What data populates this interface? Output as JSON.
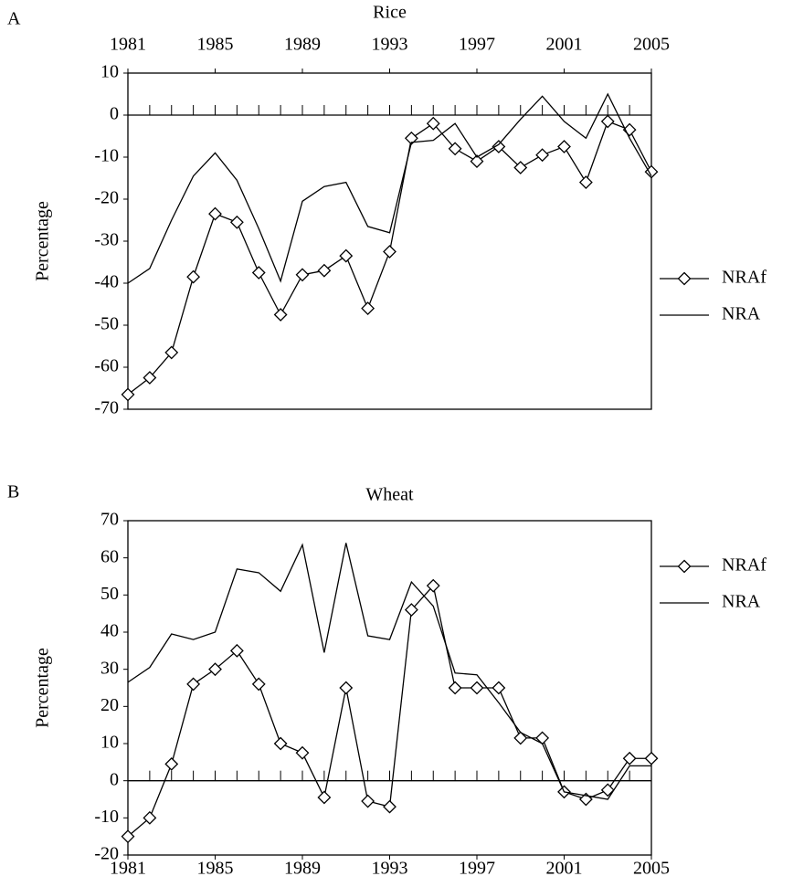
{
  "chart_data": [
    {
      "type": "line",
      "panel_label": "A",
      "title": "Rice",
      "y_label": "Percentage",
      "x": [
        1981,
        1982,
        1983,
        1984,
        1985,
        1986,
        1987,
        1988,
        1989,
        1990,
        1991,
        1992,
        1993,
        1994,
        1995,
        1996,
        1997,
        1998,
        1999,
        2000,
        2001,
        2002,
        2003,
        2004,
        2005
      ],
      "xlim": [
        1981,
        2005
      ],
      "xticks": [
        1981,
        1985,
        1989,
        1993,
        1997,
        2001,
        2005
      ],
      "x_axis_position": "top",
      "ylim": [
        -70,
        10
      ],
      "yticks": [
        -70,
        -60,
        -50,
        -40,
        -30,
        -20,
        -10,
        0,
        10
      ],
      "series": [
        {
          "name": "NRAf",
          "color": "#000000",
          "marker": "diamond",
          "values": [
            -66.5,
            -62.5,
            -56.5,
            -38.5,
            -23.5,
            -25.5,
            -37.5,
            -47.5,
            -38,
            -37,
            -33.5,
            -46,
            -32.5,
            -5.5,
            -2,
            -8,
            -11,
            -7.5,
            -12.5,
            -9.5,
            -7.5,
            -16,
            -1.5,
            -3.5,
            -13.5
          ]
        },
        {
          "name": "NRA",
          "color": "#000000",
          "marker": "none",
          "values": [
            -40,
            -36.5,
            -25,
            -14.5,
            -9,
            -15.5,
            -27,
            -39.5,
            -20.5,
            -17,
            -16,
            -26.5,
            -28,
            -6.5,
            -6,
            -2,
            -10,
            -7,
            -1,
            4.5,
            -1.5,
            -5.5,
            5,
            -5.5,
            -14.5
          ]
        }
      ]
    },
    {
      "type": "line",
      "panel_label": "B",
      "title": "Wheat",
      "y_label": "Percentage",
      "x": [
        1981,
        1982,
        1983,
        1984,
        1985,
        1986,
        1987,
        1988,
        1989,
        1990,
        1991,
        1992,
        1993,
        1994,
        1995,
        1996,
        1997,
        1998,
        1999,
        2000,
        2001,
        2002,
        2003,
        2004,
        2005
      ],
      "xlim": [
        1981,
        2005
      ],
      "xticks": [
        1981,
        1985,
        1989,
        1993,
        1997,
        2001,
        2005
      ],
      "x_axis_position": "bottom",
      "ylim": [
        -20,
        70
      ],
      "yticks": [
        -20,
        -10,
        0,
        10,
        20,
        30,
        40,
        50,
        60,
        70
      ],
      "series": [
        {
          "name": "NRAf",
          "color": "#000000",
          "marker": "diamond",
          "values": [
            -15,
            -10,
            4.5,
            26,
            30,
            35,
            26,
            10,
            7.5,
            -4.5,
            25,
            -5.5,
            -7,
            46,
            52.5,
            25,
            25,
            25,
            11.5,
            11.5,
            -3,
            -5,
            -2.5,
            6,
            6
          ]
        },
        {
          "name": "NRA",
          "color": "#000000",
          "marker": "none",
          "values": [
            26.5,
            30.5,
            39.5,
            38,
            40,
            57,
            56,
            51,
            63.5,
            34.5,
            64,
            39,
            38,
            53.5,
            47,
            29,
            28.5,
            21,
            13,
            10,
            -3,
            -4,
            -5,
            4,
            4
          ]
        }
      ]
    }
  ]
}
